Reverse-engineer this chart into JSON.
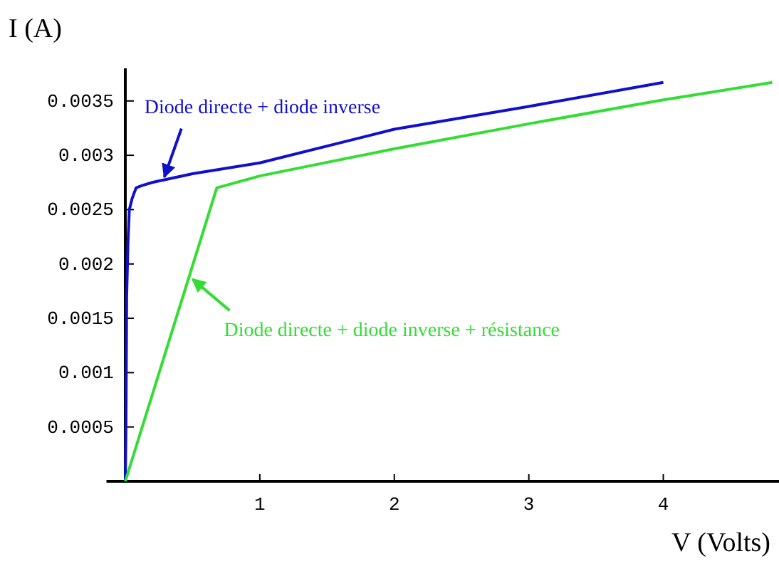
{
  "chart_data": {
    "type": "line",
    "xlabel": "V (Volts)",
    "ylabel": "I (A)",
    "xlim": [
      -0.14,
      4.86
    ],
    "ylim": [
      0,
      0.0038
    ],
    "xticks": [
      1,
      2,
      3,
      4
    ],
    "yticks": [
      0.0005,
      0.001,
      0.0015,
      0.002,
      0.0025,
      0.003,
      0.0035
    ],
    "grid": false,
    "marker": "none",
    "line_style": "solid",
    "series": [
      {
        "color": "#1010cc",
        "x": [
          0,
          0.005,
          0.01,
          0.02,
          0.03,
          0.05,
          0.08,
          0.12,
          0.2,
          0.5,
          1,
          2,
          3,
          4
        ],
        "values": [
          0,
          0.0005,
          0.0017,
          0.0022,
          0.0025,
          0.0026,
          0.0027,
          0.00272,
          0.00275,
          0.00283,
          0.00293,
          0.00324,
          0.00345,
          0.00367
        ]
      },
      {
        "color": "#33dd33",
        "x": [
          0,
          0.68,
          1,
          2,
          3,
          4,
          4.81
        ],
        "values": [
          0,
          0.0027,
          0.00281,
          0.00306,
          0.00329,
          0.00351,
          0.00367
        ]
      }
    ],
    "annotations": [
      {
        "text": "Diode directe + diode inverse",
        "x": 0.29,
        "y": 0.0028
      },
      {
        "text": "Diode directe + diode inverse + résistance",
        "x": 0.5,
        "y": 0.00186
      }
    ]
  }
}
